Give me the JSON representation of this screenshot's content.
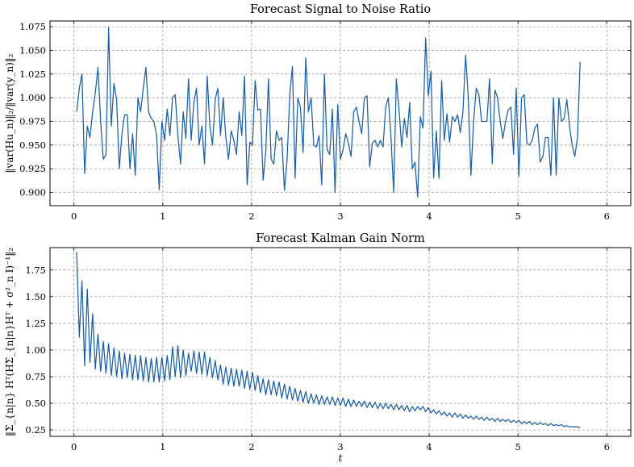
{
  "chart_data": [
    {
      "type": "line",
      "title": "Forecast Signal to Noise Ratio",
      "xlabel": "",
      "ylabel": "‖var(Hu_n)‖₂/‖var(y_n)‖₂",
      "xlim": [
        -0.27,
        6.27
      ],
      "ylim": [
        0.886,
        1.081
      ],
      "xticks": [
        0,
        1,
        2,
        3,
        4,
        5,
        6
      ],
      "xtick_labels": [
        "0",
        "1",
        "2",
        "3",
        "4",
        "5",
        "6"
      ],
      "yticks": [
        0.9,
        0.925,
        0.95,
        0.975,
        1.0,
        1.025,
        1.05,
        1.075
      ],
      "ytick_labels": [
        "0.900",
        "0.925",
        "0.950",
        "0.975",
        "1.000",
        "1.025",
        "1.050",
        "1.075"
      ],
      "grid": true,
      "color": "#1a5fa8",
      "series": [
        {
          "x0": 0.03,
          "dx": 0.03,
          "values": [
            0.985,
            1.01,
            1.025,
            0.92,
            0.97,
            0.958,
            0.985,
            1.005,
            1.032,
            0.975,
            0.935,
            0.94,
            1.074,
            0.97,
            1.015,
            0.998,
            0.925,
            0.962,
            0.982,
            0.982,
            0.925,
            0.962,
            0.918,
            1.0,
            0.985,
            1.01,
            1.032,
            0.985,
            0.978,
            0.975,
            0.96,
            0.903,
            0.975,
            0.955,
            0.988,
            0.96,
            1.0,
            1.003,
            0.96,
            0.93,
            0.985,
            0.957,
            1.02,
            0.955,
            0.995,
            1.01,
            0.95,
            0.97,
            0.93,
            1.023,
            0.97,
            0.95,
            0.998,
            1.01,
            0.96,
            1.0,
            0.958,
            0.935,
            0.965,
            0.955,
            0.94,
            0.985,
            0.96,
            1.023,
            0.908,
            0.953,
            0.95,
            1.018,
            0.987,
            0.988,
            0.913,
            0.943,
            1.02,
            0.935,
            0.93,
            0.965,
            0.955,
            0.958,
            0.902,
            0.935,
            1.003,
            1.033,
            0.915,
            1.0,
            0.99,
            0.942,
            1.042,
            0.985,
            1.0,
            0.95,
            0.948,
            0.96,
            0.908,
            1.025,
            0.945,
            0.94,
            0.988,
            0.9,
            0.993,
            0.935,
            0.945,
            0.962,
            0.952,
            0.938,
            0.985,
            0.99,
            0.975,
            0.962,
            1.0,
            1.002,
            0.927,
            0.952,
            0.955,
            0.948,
            0.955,
            0.948,
            0.99,
            1.0,
            0.958,
            0.9,
            1.02,
            0.988,
            0.948,
            0.978,
            0.958,
            0.995,
            0.925,
            0.932,
            0.895,
            0.98,
            0.968,
            1.063,
            1.002,
            1.028,
            0.915,
            0.965,
            0.915,
            1.018,
            0.955,
            0.983,
            0.953,
            0.98,
            0.975,
            0.982,
            0.963,
            0.985,
            1.045,
            1.0,
            0.918,
            0.975,
            1.01,
            1.003,
            0.975,
            0.975,
            0.975,
            1.02,
            0.93,
            1.008,
            1.0,
            0.975,
            0.957,
            0.975,
            0.987,
            0.99,
            0.94,
            1.01,
            0.917,
            1.0,
            1.003,
            0.952,
            0.95,
            0.955,
            0.968,
            0.972,
            0.932,
            0.938,
            0.958,
            0.958,
            0.918,
            1.0,
            0.918,
            1.0,
            0.975,
            0.978,
            0.998,
            0.97,
            0.95,
            0.938,
            0.958,
            1.038
          ]
        }
      ]
    },
    {
      "type": "line",
      "title": "Forecast Kalman Gain Norm",
      "xlabel": "t",
      "ylabel": "‖Σ_{n|n} Hᵀ(HΣ_{n|n}Hᵀ + σ²_n I)⁻¹‖₂",
      "xlim": [
        -0.27,
        6.27
      ],
      "ylim": [
        0.19,
        1.96
      ],
      "xticks": [
        0,
        1,
        2,
        3,
        4,
        5,
        6
      ],
      "xtick_labels": [
        "0",
        "1",
        "2",
        "3",
        "4",
        "5",
        "6"
      ],
      "yticks": [
        0.25,
        0.5,
        0.75,
        1.0,
        1.25,
        1.5,
        1.75
      ],
      "ytick_labels": [
        "0.25",
        "0.50",
        "0.75",
        "1.00",
        "1.25",
        "1.50",
        "1.75"
      ],
      "grid": true,
      "color": "#1a5fa8",
      "series": [
        {
          "x0": 0.03,
          "dx": 0.03,
          "values": [
            1.92,
            1.12,
            1.65,
            0.85,
            1.57,
            0.88,
            1.34,
            0.82,
            1.15,
            0.8,
            1.08,
            0.78,
            1.06,
            0.76,
            1.02,
            0.75,
            0.99,
            0.73,
            0.97,
            0.74,
            0.96,
            0.72,
            0.95,
            0.72,
            0.95,
            0.71,
            0.93,
            0.7,
            0.92,
            0.7,
            0.93,
            0.7,
            0.93,
            0.71,
            0.95,
            0.72,
            1.03,
            0.75,
            1.04,
            0.74,
            1.0,
            0.76,
            0.97,
            0.8,
            0.99,
            0.78,
            0.98,
            0.77,
            0.98,
            0.76,
            0.93,
            0.74,
            0.9,
            0.72,
            0.86,
            0.68,
            0.84,
            0.67,
            0.83,
            0.66,
            0.82,
            0.66,
            0.81,
            0.64,
            0.8,
            0.63,
            0.79,
            0.62,
            0.76,
            0.6,
            0.73,
            0.58,
            0.72,
            0.58,
            0.71,
            0.57,
            0.7,
            0.55,
            0.68,
            0.54,
            0.66,
            0.53,
            0.64,
            0.52,
            0.62,
            0.51,
            0.61,
            0.5,
            0.59,
            0.5,
            0.58,
            0.49,
            0.57,
            0.49,
            0.56,
            0.49,
            0.56,
            0.48,
            0.55,
            0.48,
            0.55,
            0.47,
            0.54,
            0.47,
            0.53,
            0.47,
            0.52,
            0.47,
            0.52,
            0.46,
            0.51,
            0.46,
            0.51,
            0.45,
            0.5,
            0.45,
            0.5,
            0.45,
            0.49,
            0.44,
            0.49,
            0.44,
            0.48,
            0.43,
            0.48,
            0.42,
            0.47,
            0.43,
            0.47,
            0.44,
            0.47,
            0.42,
            0.46,
            0.41,
            0.44,
            0.4,
            0.43,
            0.39,
            0.42,
            0.38,
            0.41,
            0.37,
            0.41,
            0.37,
            0.4,
            0.36,
            0.39,
            0.36,
            0.38,
            0.35,
            0.38,
            0.35,
            0.37,
            0.34,
            0.37,
            0.34,
            0.36,
            0.33,
            0.36,
            0.33,
            0.35,
            0.33,
            0.35,
            0.32,
            0.34,
            0.32,
            0.34,
            0.31,
            0.33,
            0.31,
            0.33,
            0.3,
            0.32,
            0.3,
            0.32,
            0.3,
            0.31,
            0.29,
            0.31,
            0.29,
            0.3,
            0.29,
            0.3,
            0.28,
            0.29,
            0.28,
            0.28,
            0.28,
            0.28,
            0.27
          ]
        }
      ]
    }
  ]
}
